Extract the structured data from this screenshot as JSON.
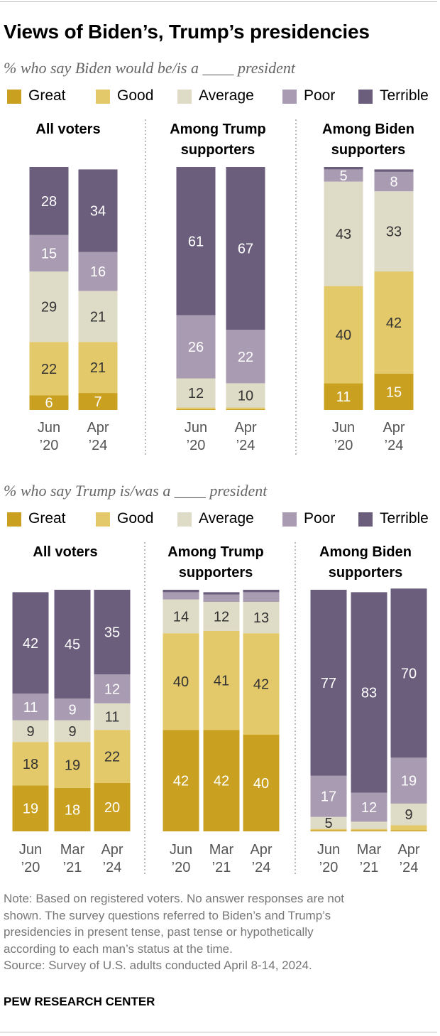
{
  "title": "Views of Biden’s, Trump’s presidencies",
  "legend_colors": {
    "Great": "#c9a020",
    "Good": "#e3c96a",
    "Average": "#dedbc6",
    "Poor": "#a89bb2",
    "Terrible": "#6b5e7c"
  },
  "label_colors": {
    "dark": "#333333",
    "light": "#ffffff"
  },
  "chart_data": [
    {
      "type": "bar",
      "stacked": true,
      "subtitle": "% who say Biden would be/is a ____ president",
      "legend": [
        "Great",
        "Good",
        "Average",
        "Poor",
        "Terrible"
      ],
      "legend_placement": "top",
      "grid": false,
      "ylim": [
        0,
        100
      ],
      "panels": [
        {
          "title": [
            "All voters"
          ],
          "categories": [
            [
              "Jun",
              "’20"
            ],
            [
              "Apr",
              "’24"
            ]
          ],
          "series": [
            {
              "name": "Great",
              "values": [
                6,
                7
              ]
            },
            {
              "name": "Good",
              "values": [
                22,
                21
              ]
            },
            {
              "name": "Average",
              "values": [
                29,
                21
              ]
            },
            {
              "name": "Poor",
              "values": [
                15,
                16
              ]
            },
            {
              "name": "Terrible",
              "values": [
                28,
                34
              ]
            }
          ],
          "labels": [
            [
              "6",
              "22",
              "29",
              "15",
              "28"
            ],
            [
              "7",
              "21",
              "21",
              "16",
              "34"
            ]
          ]
        },
        {
          "title": [
            "Among Trump",
            "supporters"
          ],
          "categories": [
            [
              "Jun",
              "’20"
            ],
            [
              "Apr",
              "’24"
            ]
          ],
          "series": [
            {
              "name": "Great",
              "values": [
                0.3,
                0.3
              ]
            },
            {
              "name": "Good",
              "values": [
                0.7,
                0.7
              ]
            },
            {
              "name": "Average",
              "values": [
                12,
                10
              ]
            },
            {
              "name": "Poor",
              "values": [
                26,
                22
              ]
            },
            {
              "name": "Terrible",
              "values": [
                61,
                67
              ]
            }
          ],
          "labels": [
            [
              "",
              "",
              "12",
              "26",
              "61"
            ],
            [
              "",
              "",
              "10",
              "22",
              "67"
            ]
          ]
        },
        {
          "title": [
            "Among Biden",
            "supporters"
          ],
          "categories": [
            [
              "Jun",
              "’20"
            ],
            [
              "Apr",
              "’24"
            ]
          ],
          "series": [
            {
              "name": "Great",
              "values": [
                11,
                15
              ]
            },
            {
              "name": "Good",
              "values": [
                40,
                42
              ]
            },
            {
              "name": "Average",
              "values": [
                43,
                33
              ]
            },
            {
              "name": "Poor",
              "values": [
                5,
                8
              ]
            },
            {
              "name": "Terrible",
              "values": [
                1,
                1
              ]
            }
          ],
          "labels": [
            [
              "11",
              "40",
              "43",
              "5",
              ""
            ],
            [
              "15",
              "42",
              "33",
              "8",
              ""
            ]
          ]
        }
      ]
    },
    {
      "type": "bar",
      "stacked": true,
      "subtitle": "% who say Trump is/was a ____ president",
      "legend": [
        "Great",
        "Good",
        "Average",
        "Poor",
        "Terrible"
      ],
      "legend_placement": "top",
      "grid": false,
      "ylim": [
        0,
        100
      ],
      "panels": [
        {
          "title": [
            "All voters"
          ],
          "categories": [
            [
              "Jun",
              "’20"
            ],
            [
              "Mar",
              "’21"
            ],
            [
              "Apr",
              "’24"
            ]
          ],
          "series": [
            {
              "name": "Great",
              "values": [
                19,
                18,
                20
              ]
            },
            {
              "name": "Good",
              "values": [
                18,
                19,
                22
              ]
            },
            {
              "name": "Average",
              "values": [
                9,
                9,
                11
              ]
            },
            {
              "name": "Poor",
              "values": [
                11,
                9,
                12
              ]
            },
            {
              "name": "Terrible",
              "values": [
                42,
                45,
                35
              ]
            }
          ],
          "labels": [
            [
              "19",
              "18",
              "9",
              "11",
              "42"
            ],
            [
              "18",
              "19",
              "9",
              "9",
              "45"
            ],
            [
              "20",
              "22",
              "11",
              "12",
              "35"
            ]
          ]
        },
        {
          "title": [
            "Among Trump",
            "supporters"
          ],
          "categories": [
            [
              "Jun",
              "’20"
            ],
            [
              "Mar",
              "’21"
            ],
            [
              "Apr",
              "’24"
            ]
          ],
          "series": [
            {
              "name": "Great",
              "values": [
                42,
                42,
                40
              ]
            },
            {
              "name": "Good",
              "values": [
                40,
                41,
                42
              ]
            },
            {
              "name": "Average",
              "values": [
                14,
                12,
                13
              ]
            },
            {
              "name": "Poor",
              "values": [
                3,
                3,
                4
              ]
            },
            {
              "name": "Terrible",
              "values": [
                1,
                1,
                1
              ]
            }
          ],
          "labels": [
            [
              "42",
              "40",
              "14",
              "",
              ""
            ],
            [
              "42",
              "41",
              "12",
              "",
              ""
            ],
            [
              "40",
              "42",
              "13",
              "",
              ""
            ]
          ]
        },
        {
          "title": [
            "Among Biden",
            "supporters"
          ],
          "categories": [
            [
              "Jun",
              "’20"
            ],
            [
              "Mar",
              "’21"
            ],
            [
              "Apr",
              "’24"
            ]
          ],
          "series": [
            {
              "name": "Great",
              "values": [
                0.5,
                0.5,
                0.5
              ]
            },
            {
              "name": "Good",
              "values": [
                0.5,
                0.5,
                2
              ]
            },
            {
              "name": "Average",
              "values": [
                5,
                3,
                9
              ]
            },
            {
              "name": "Poor",
              "values": [
                17,
                12,
                19
              ]
            },
            {
              "name": "Terrible",
              "values": [
                77,
                83,
                70
              ]
            }
          ],
          "labels": [
            [
              "",
              "",
              "5",
              "17",
              "77"
            ],
            [
              "",
              "",
              "",
              "12",
              "83"
            ],
            [
              "",
              "",
              "9",
              "19",
              "70"
            ]
          ]
        }
      ]
    }
  ],
  "note_lines": [
    "Note: Based on registered voters. No answer responses are not",
    "shown. The survey questions referred to Biden’s and Trump’s",
    "presidencies in present tense, past tense or hypothetically",
    "according to each man’s status at the time."
  ],
  "source": "Source: Survey of U.S. adults conducted April 8-14, 2024.",
  "footer": "PEW RESEARCH CENTER"
}
